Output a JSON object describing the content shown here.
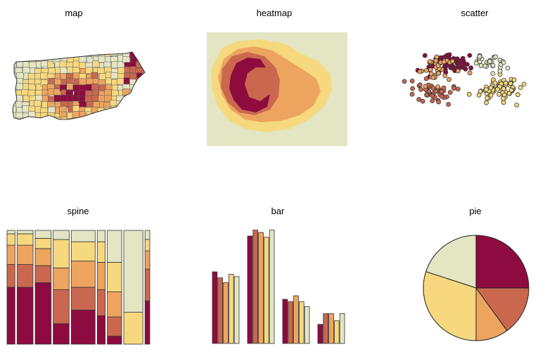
{
  "palette": [
    "#8e0b3f",
    "#c9684e",
    "#eda45f",
    "#f6d87e",
    "#e3e5c3"
  ],
  "panels": {
    "map": {
      "title": "map"
    },
    "heatmap": {
      "title": "heatmap"
    },
    "scatter": {
      "title": "scatter"
    },
    "spine": {
      "title": "spine"
    },
    "bar": {
      "title": "bar"
    },
    "pie": {
      "title": "pie"
    }
  },
  "chart_data": [
    {
      "type": "other",
      "subtype": "choropleth-map",
      "title": "map",
      "palette_order": "dark red (high) to pale yellow-green (low)"
    },
    {
      "type": "heatmap",
      "title": "heatmap",
      "levels": 5,
      "description_of_pattern": "concentric rings, darkest C-shaped core left of center"
    },
    {
      "type": "scatter",
      "title": "scatter",
      "xlim": [
        0,
        10
      ],
      "ylim": [
        0,
        10
      ],
      "series": [
        {
          "color_index": 0,
          "center": [
            3.2,
            7.2
          ],
          "spread": [
            1.1,
            0.7
          ],
          "count": 70
        },
        {
          "color_index": 1,
          "center": [
            2.0,
            4.6
          ],
          "spread": [
            1.3,
            0.9
          ],
          "count": 45
        },
        {
          "color_index": 2,
          "center": [
            2.3,
            6.6
          ],
          "spread": [
            1.2,
            1.2
          ],
          "count": 35
        },
        {
          "color_index": 3,
          "center": [
            6.6,
            4.9
          ],
          "spread": [
            1.3,
            0.9
          ],
          "count": 70
        },
        {
          "color_index": 4,
          "center": [
            6.2,
            7.3
          ],
          "spread": [
            1.0,
            0.6
          ],
          "count": 30
        }
      ]
    },
    {
      "type": "bar",
      "subtype": "spineplot",
      "title": "spine",
      "widths": [
        0.5,
        1.0,
        1.0,
        1.0,
        1.5,
        0.5,
        0.9,
        1.2,
        0.3
      ],
      "columns": [
        [
          0.5,
          0.2,
          0.17,
          0.1,
          0.03
        ],
        [
          0.5,
          0.2,
          0.17,
          0.1,
          0.03
        ],
        [
          0.54,
          0.15,
          0.15,
          0.09,
          0.07
        ],
        [
          0.18,
          0.3,
          0.19,
          0.25,
          0.08
        ],
        [
          0.3,
          0.2,
          0.23,
          0.17,
          0.1
        ],
        [
          0.25,
          0.23,
          0.24,
          0.18,
          0.1
        ],
        [
          0.07,
          0.17,
          0.22,
          0.26,
          0.28
        ],
        [
          0.0,
          0.0,
          0.0,
          0.28,
          0.72
        ],
        [
          0.38,
          0.28,
          0.16,
          0.1,
          0.08
        ]
      ]
    },
    {
      "type": "bar",
      "subtype": "grouped",
      "title": "bar",
      "ylim": [
        0,
        100
      ],
      "groups": [
        [
          60,
          55,
          51,
          58,
          56
        ],
        [
          90,
          95,
          93,
          89,
          95
        ],
        [
          37,
          35,
          40,
          35,
          31
        ],
        [
          16,
          25,
          25,
          19,
          25
        ]
      ]
    },
    {
      "type": "pie",
      "title": "pie",
      "slices": [
        {
          "color_index": 0,
          "share": 0.25
        },
        {
          "color_index": 4,
          "share": 0.2
        },
        {
          "color_index": 3,
          "share": 0.3
        },
        {
          "color_index": 2,
          "share": 0.1
        },
        {
          "color_index": 1,
          "share": 0.15
        }
      ]
    }
  ]
}
